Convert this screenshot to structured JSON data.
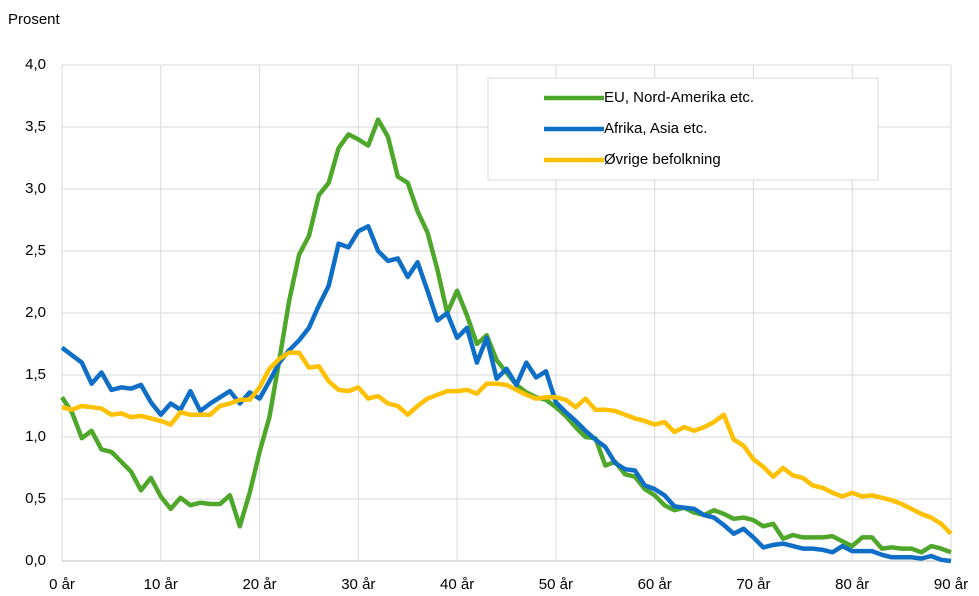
{
  "chart_data": {
    "type": "line",
    "ylabel": "Prosent",
    "x": [
      0,
      1,
      2,
      3,
      4,
      5,
      6,
      7,
      8,
      9,
      10,
      11,
      12,
      13,
      14,
      15,
      16,
      17,
      18,
      19,
      20,
      21,
      22,
      23,
      24,
      25,
      26,
      27,
      28,
      29,
      30,
      31,
      32,
      33,
      34,
      35,
      36,
      37,
      38,
      39,
      40,
      41,
      42,
      43,
      44,
      45,
      46,
      47,
      48,
      49,
      50,
      51,
      52,
      53,
      54,
      55,
      56,
      57,
      58,
      59,
      60,
      61,
      62,
      63,
      64,
      65,
      66,
      67,
      68,
      69,
      70,
      71,
      72,
      73,
      74,
      75,
      76,
      77,
      78,
      79,
      80,
      81,
      82,
      83,
      84,
      85,
      86,
      87,
      88,
      89,
      90
    ],
    "xlim": [
      0,
      90
    ],
    "xticks": [
      {
        "value": 0,
        "label": "0 år"
      },
      {
        "value": 10,
        "label": "10 år"
      },
      {
        "value": 20,
        "label": "20 år"
      },
      {
        "value": 30,
        "label": "30 år"
      },
      {
        "value": 40,
        "label": "40 år"
      },
      {
        "value": 50,
        "label": "50 år"
      },
      {
        "value": 60,
        "label": "60 år"
      },
      {
        "value": 70,
        "label": "70 år"
      },
      {
        "value": 80,
        "label": "80 år"
      },
      {
        "value": 90,
        "label": "90 år"
      }
    ],
    "ylim": [
      0,
      4
    ],
    "yticks": [
      {
        "value": 0,
        "label": "0,0"
      },
      {
        "value": 0.5,
        "label": "0,5"
      },
      {
        "value": 1,
        "label": "1,0"
      },
      {
        "value": 1.5,
        "label": "1,5"
      },
      {
        "value": 2,
        "label": "2,0"
      },
      {
        "value": 2.5,
        "label": "2,5"
      },
      {
        "value": 3,
        "label": "3,0"
      },
      {
        "value": 3.5,
        "label": "3,5"
      },
      {
        "value": 4,
        "label": "4,0"
      }
    ],
    "grid": true,
    "legend": "upper right",
    "series": [
      {
        "name": "EU, Nord-Amerika etc.",
        "color": "#4ea72a",
        "values": [
          1.32,
          1.2,
          0.99,
          1.05,
          0.9,
          0.88,
          0.8,
          0.72,
          0.57,
          0.67,
          0.52,
          0.42,
          0.51,
          0.45,
          0.47,
          0.46,
          0.46,
          0.53,
          0.28,
          0.55,
          0.88,
          1.16,
          1.62,
          2.1,
          2.47,
          2.62,
          2.95,
          3.05,
          3.33,
          3.44,
          3.4,
          3.35,
          3.56,
          3.42,
          3.1,
          3.05,
          2.82,
          2.65,
          2.35,
          2.0,
          2.18,
          1.98,
          1.75,
          1.82,
          1.62,
          1.52,
          1.42,
          1.36,
          1.32,
          1.3,
          1.24,
          1.17,
          1.08,
          1.0,
          0.99,
          0.77,
          0.8,
          0.7,
          0.68,
          0.58,
          0.53,
          0.45,
          0.41,
          0.43,
          0.39,
          0.37,
          0.41,
          0.38,
          0.34,
          0.35,
          0.33,
          0.28,
          0.3,
          0.18,
          0.21,
          0.19,
          0.19,
          0.19,
          0.2,
          0.16,
          0.12,
          0.19,
          0.19,
          0.1,
          0.11,
          0.1,
          0.1,
          0.07,
          0.12,
          0.1,
          0.07
        ]
      },
      {
        "name": "Afrika, Asia etc.",
        "color": "#0f6fc6",
        "values": [
          1.72,
          1.66,
          1.6,
          1.43,
          1.52,
          1.38,
          1.4,
          1.39,
          1.42,
          1.28,
          1.18,
          1.27,
          1.22,
          1.37,
          1.21,
          1.27,
          1.32,
          1.37,
          1.27,
          1.36,
          1.31,
          1.45,
          1.6,
          1.7,
          1.78,
          1.88,
          2.06,
          2.22,
          2.56,
          2.53,
          2.66,
          2.7,
          2.5,
          2.42,
          2.44,
          2.29,
          2.41,
          2.18,
          1.94,
          2.0,
          1.8,
          1.88,
          1.6,
          1.8,
          1.47,
          1.55,
          1.42,
          1.6,
          1.48,
          1.53,
          1.28,
          1.2,
          1.13,
          1.05,
          0.98,
          0.92,
          0.79,
          0.74,
          0.73,
          0.61,
          0.58,
          0.53,
          0.44,
          0.43,
          0.42,
          0.37,
          0.35,
          0.29,
          0.22,
          0.26,
          0.19,
          0.11,
          0.13,
          0.14,
          0.12,
          0.1,
          0.1,
          0.09,
          0.07,
          0.12,
          0.08,
          0.08,
          0.08,
          0.05,
          0.03,
          0.03,
          0.03,
          0.02,
          0.04,
          0.01,
          0.0
        ]
      },
      {
        "name": "Øvrige befolkning",
        "color": "#ffc000",
        "values": [
          1.24,
          1.22,
          1.25,
          1.24,
          1.23,
          1.18,
          1.19,
          1.16,
          1.17,
          1.15,
          1.13,
          1.1,
          1.2,
          1.18,
          1.18,
          1.18,
          1.25,
          1.27,
          1.3,
          1.3,
          1.4,
          1.55,
          1.63,
          1.68,
          1.68,
          1.56,
          1.57,
          1.45,
          1.38,
          1.37,
          1.4,
          1.31,
          1.33,
          1.27,
          1.25,
          1.18,
          1.25,
          1.31,
          1.34,
          1.37,
          1.37,
          1.38,
          1.35,
          1.43,
          1.43,
          1.42,
          1.38,
          1.34,
          1.31,
          1.32,
          1.32,
          1.3,
          1.24,
          1.31,
          1.22,
          1.22,
          1.21,
          1.18,
          1.15,
          1.13,
          1.1,
          1.12,
          1.04,
          1.08,
          1.05,
          1.08,
          1.12,
          1.18,
          0.98,
          0.93,
          0.82,
          0.76,
          0.68,
          0.75,
          0.69,
          0.67,
          0.61,
          0.59,
          0.55,
          0.52,
          0.55,
          0.52,
          0.53,
          0.51,
          0.49,
          0.46,
          0.42,
          0.38,
          0.35,
          0.3,
          0.22
        ]
      }
    ]
  }
}
